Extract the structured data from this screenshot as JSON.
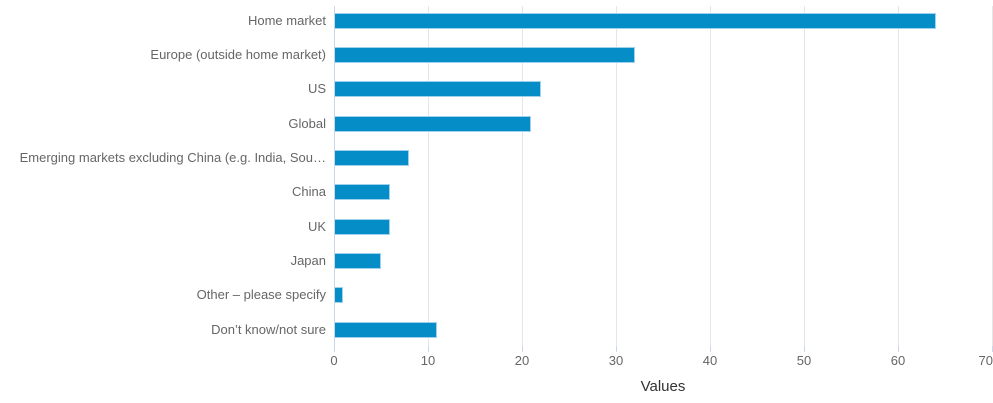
{
  "chart_data": {
    "type": "bar",
    "orientation": "horizontal",
    "title": "",
    "xlabel": "Values",
    "ylabel": "",
    "xlim": [
      0,
      70
    ],
    "xticks": [
      0,
      10,
      20,
      30,
      40,
      50,
      60,
      70
    ],
    "grid": true,
    "legend": false,
    "categories": [
      "Home market",
      "Europe (outside home market)",
      "US",
      "Global",
      "Emerging markets excluding China (e.g. India, Sou…",
      "China",
      "UK",
      "Japan",
      "Other – please specify",
      "Don’t know/not sure"
    ],
    "values": [
      64,
      32,
      22,
      21,
      8,
      6,
      6,
      5,
      1,
      11
    ]
  },
  "colors": {
    "bar_fill": "#058dc7",
    "bar_border": "#9fd1ec",
    "grid_line": "#e6e6e6",
    "axis_line": "#ccd6eb",
    "tick_mark": "#ccd6eb",
    "category_label": "#666666",
    "tick_label": "#666666",
    "axis_title": "#333333",
    "background": "#ffffff"
  }
}
